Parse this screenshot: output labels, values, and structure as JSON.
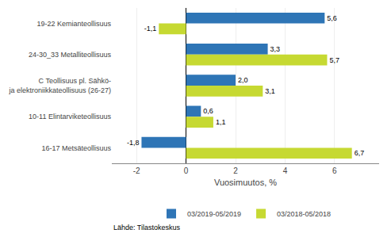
{
  "chart_data": {
    "type": "bar",
    "orientation": "horizontal",
    "categories": [
      "19-22 Kemianteollisuus",
      "24-30_33 Metalliteollisuus",
      "C Teollisuus pl. Sähkö-\nja elektroniikkateollisuus (26-27)",
      "10-11 Elintarviketeollisuus",
      "16-17 Metsäteollisuus"
    ],
    "series": [
      {
        "name": "03/2019-05/2019",
        "color": "#2E75B6",
        "values": [
          5.6,
          3.3,
          2.0,
          0.6,
          -1.8
        ],
        "value_labels": [
          "5,6",
          "3,3",
          "2,0",
          "0,6",
          "-1,8"
        ]
      },
      {
        "name": "03/2018-05/2018",
        "color": "#C6D932",
        "values": [
          -1.1,
          5.7,
          3.1,
          1.1,
          6.7
        ],
        "value_labels": [
          "-1,1",
          "5,7",
          "3,1",
          "1,1",
          "6,7"
        ]
      }
    ],
    "x_label": "Vuosimuutos, %",
    "xlim": [
      -3,
      7.8
    ],
    "xticks": [
      -2,
      0,
      2,
      4,
      6
    ],
    "grid": true,
    "legend": "bottom",
    "data_labels": true,
    "annotations": [
      {
        "text": "Lähde: Tilastokeskus"
      }
    ]
  }
}
